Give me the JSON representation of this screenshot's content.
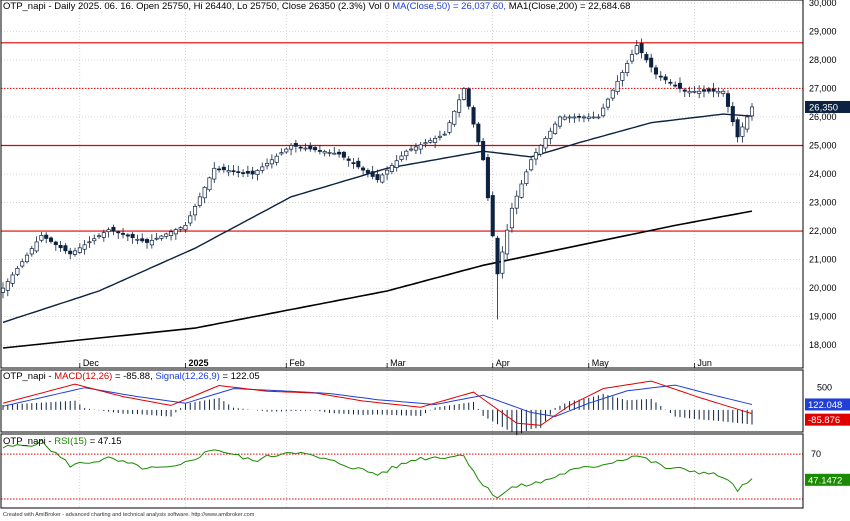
{
  "header": {
    "price": {
      "ticker": "OTP_napi",
      "info": "Daily 2025. 06. 16. Open 25750, Hi 26440, Lo 25750, Close 26350 (2.3%) Vol 0",
      "ma_label": "MA(Close,50) = 26,037.60,",
      "ma1_label": "MA1(Close,200) = 22,684.68"
    },
    "macd": {
      "ticker": "OTP_napi",
      "macd_label": "MACD(12,26)",
      "macd_value": "= -85.88,",
      "signal_label": "Signal(12,26,9)",
      "signal_value": "= 122.05"
    },
    "rsi": {
      "ticker": "OTP_napi",
      "rsi_label": "RSI(15)",
      "rsi_value": "= 47.15"
    }
  },
  "footer": "Created with AmiBroker - advanced charting and technical analysis software. http://www.amibroker.com",
  "colors": {
    "bull": "#ffffff",
    "bear": "#0d2240",
    "candle_outline": "#0d2240",
    "ma50": "#0d2240",
    "ma200": "#000000",
    "hline": "#e00000",
    "macd": "#e00000",
    "signal": "#1f3fd6",
    "hist": "#0d2240",
    "rsi": "#1a8a00"
  },
  "chart_data": [
    {
      "type": "candlestick",
      "panel": "price",
      "yticks": [
        18000,
        19000,
        20000,
        21000,
        22000,
        23000,
        24000,
        25000,
        26000,
        27000,
        28000,
        29000,
        30000
      ],
      "ytick_labels": [
        "18,000",
        "19,000",
        "20,000",
        "21,000",
        "22,000",
        "23,000",
        "24,000",
        "25,000",
        "26,000",
        "27,000",
        "28,000",
        "29,000",
        "30,000"
      ],
      "ylim": [
        17200,
        30100
      ],
      "x_labels": [
        "Dec",
        "2025",
        "Feb",
        "Mar",
        "Apr",
        "May",
        "Jun"
      ],
      "x_label_positions": [
        16,
        38,
        59,
        80,
        102,
        122,
        144
      ],
      "bars": 157,
      "solid_lines": [
        28600,
        25000,
        22000
      ],
      "dotted_lines": [
        27000
      ],
      "last_price_badge": "26,350",
      "last_price": 26350,
      "anchors": [
        [
          0,
          20000
        ],
        [
          8,
          21850
        ],
        [
          14,
          21200
        ],
        [
          22,
          22050
        ],
        [
          30,
          21600
        ],
        [
          38,
          22200
        ],
        [
          44,
          24200
        ],
        [
          52,
          24000
        ],
        [
          60,
          25000
        ],
        [
          70,
          24700
        ],
        [
          78,
          23800
        ],
        [
          84,
          24800
        ],
        [
          92,
          25400
        ],
        [
          96,
          27000
        ],
        [
          100,
          24500
        ],
        [
          103,
          20500
        ],
        [
          106,
          22800
        ],
        [
          110,
          24500
        ],
        [
          116,
          26000
        ],
        [
          124,
          26000
        ],
        [
          132,
          28500
        ],
        [
          136,
          27500
        ],
        [
          142,
          26900
        ],
        [
          150,
          26900
        ],
        [
          153,
          25300
        ],
        [
          156,
          26350
        ]
      ],
      "specials": [
        {
          "i": 103,
          "low": 18900
        },
        {
          "i": 96,
          "high": 27050
        },
        {
          "i": 132,
          "high": 28700
        },
        {
          "i": 154,
          "low": 25100
        }
      ]
    },
    {
      "type": "line",
      "panel": "price",
      "name": "MA(Close,50)",
      "anchors": [
        [
          0,
          18800
        ],
        [
          20,
          19900
        ],
        [
          40,
          21400
        ],
        [
          60,
          23200
        ],
        [
          80,
          24200
        ],
        [
          100,
          24800
        ],
        [
          110,
          24600
        ],
        [
          120,
          25100
        ],
        [
          135,
          25800
        ],
        [
          150,
          26100
        ],
        [
          156,
          26030
        ]
      ]
    },
    {
      "type": "line",
      "panel": "price",
      "name": "MA1(Close,200)",
      "anchors": [
        [
          0,
          17900
        ],
        [
          40,
          18600
        ],
        [
          80,
          19900
        ],
        [
          100,
          20800
        ],
        [
          120,
          21500
        ],
        [
          140,
          22200
        ],
        [
          156,
          22700
        ]
      ]
    },
    {
      "type": "line",
      "panel": "macd",
      "yticks": [
        500
      ],
      "ytick_labels": [
        "500"
      ],
      "ylim": [
        -500,
        900
      ],
      "series": [
        {
          "name": "MACD(12,26)",
          "value_badge": "-85.876",
          "anchors": [
            [
              0,
              150
            ],
            [
              15,
              580
            ],
            [
              25,
              300
            ],
            [
              35,
              100
            ],
            [
              45,
              550
            ],
            [
              55,
              420
            ],
            [
              65,
              380
            ],
            [
              75,
              200
            ],
            [
              87,
              60
            ],
            [
              98,
              400
            ],
            [
              107,
              -300
            ],
            [
              112,
              -350
            ],
            [
              118,
              100
            ],
            [
              125,
              480
            ],
            [
              135,
              650
            ],
            [
              145,
              280
            ],
            [
              156,
              -85
            ]
          ]
        },
        {
          "name": "Signal(12,26,9)",
          "value_badge": "122.048",
          "anchors": [
            [
              0,
              80
            ],
            [
              17,
              500
            ],
            [
              28,
              300
            ],
            [
              38,
              150
            ],
            [
              48,
              480
            ],
            [
              58,
              430
            ],
            [
              68,
              370
            ],
            [
              78,
              230
            ],
            [
              90,
              120
            ],
            [
              100,
              330
            ],
            [
              110,
              -60
            ],
            [
              115,
              -150
            ],
            [
              122,
              150
            ],
            [
              130,
              430
            ],
            [
              140,
              560
            ],
            [
              148,
              330
            ],
            [
              156,
              122
            ]
          ]
        }
      ]
    },
    {
      "type": "line",
      "panel": "rsi",
      "yticks": [
        70
      ],
      "ytick_labels": [
        "70"
      ],
      "ylim": [
        22,
        88
      ],
      "levels": [
        70,
        30
      ],
      "series": [
        {
          "name": "RSI(15)",
          "value_badge": "47.1472",
          "anchors": [
            [
              0,
              76
            ],
            [
              5,
              78
            ],
            [
              8,
              81
            ],
            [
              14,
              60
            ],
            [
              22,
              66
            ],
            [
              30,
              57
            ],
            [
              36,
              58
            ],
            [
              44,
              75
            ],
            [
              52,
              64
            ],
            [
              60,
              73
            ],
            [
              70,
              62
            ],
            [
              78,
              52
            ],
            [
              86,
              66
            ],
            [
              96,
              69
            ],
            [
              100,
              42
            ],
            [
              103,
              32
            ],
            [
              106,
              40
            ],
            [
              112,
              45
            ],
            [
              118,
              55
            ],
            [
              124,
              60
            ],
            [
              132,
              69
            ],
            [
              138,
              58
            ],
            [
              144,
              55
            ],
            [
              150,
              50
            ],
            [
              153,
              38
            ],
            [
              156,
              47
            ]
          ]
        }
      ]
    }
  ]
}
